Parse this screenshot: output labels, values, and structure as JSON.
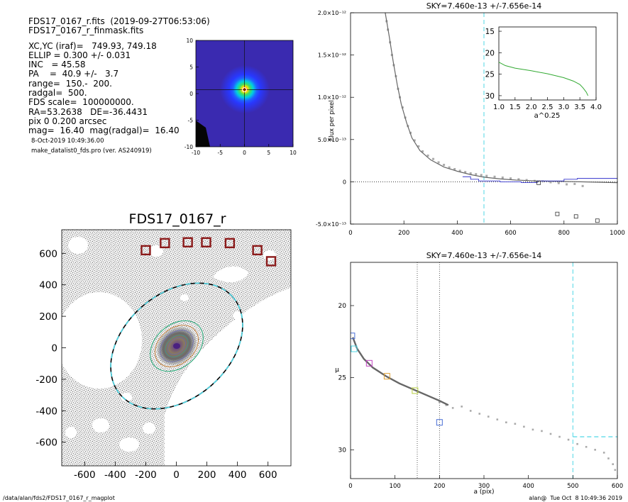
{
  "info": {
    "file_line": "FDS17_0167_r.fits  (2019-09-27T06:53:06)",
    "mask_line": "FDS17_0167_r_finmask.fits",
    "params": [
      "XC,YC (iraf)=   749.93, 749.18",
      "ELLIP = 0.300 +/- 0.031",
      "INC   = 45.58",
      "PA    =  40.9 +/-   3.7",
      "range=  150.-  200.",
      "radgal=  500.",
      "FDS scale=  100000000.",
      "RA=53.2638   DE=-36.4431",
      "pix 0 0.200 arcsec",
      "mag=  16.40  mag(radgal)=  16.40"
    ],
    "date": "8-Oct-2019 10:49:36.00",
    "program": "make_datalist0_fds.pro (ver. AS240919)"
  },
  "footer": {
    "path": "/data/alan/fds2/FDS17_0167_r_magplot",
    "stamp": "alan@  Tue Oct  8 10:49:36 2019"
  },
  "colors": {
    "sky_line": "#4fd7e6",
    "points": "#aaaaaa",
    "profile": "#666666",
    "box_red": "#8b1a1a",
    "blue_curve": "#3333cc",
    "green_curve": "#33aa33"
  },
  "chart_data": [
    {
      "type": "heatmap",
      "title": "",
      "xlim": [
        -10,
        10
      ],
      "ylim": [
        -10,
        10
      ],
      "xticks": [
        "-10",
        "-5",
        "0",
        "5",
        "10"
      ],
      "yticks": [
        "-10",
        "-5",
        "0",
        "5",
        "10"
      ],
      "colormap": "rainbow (dark blue background, red peak at center)"
    },
    {
      "type": "line",
      "title": "SKY=7.460e-13 +/-7.656e-14",
      "xlabel": "",
      "ylabel": "Flux per pixel",
      "xlim": [
        0,
        1000
      ],
      "ylim": [
        -5e-13,
        2e-12
      ],
      "xticks": [
        "0",
        "200",
        "400",
        "600",
        "800",
        "1000"
      ],
      "yticks": [
        {
          "value": -5e-13,
          "label": "-5.0×10⁻¹³"
        },
        {
          "value": 0,
          "label": "0"
        },
        {
          "value": 5e-13,
          "label": "5.0×10⁻¹³"
        },
        {
          "value": 1e-12,
          "label": "1.0×10⁻¹²"
        },
        {
          "value": 1.5e-12,
          "label": "1.5×10⁻¹²"
        },
        {
          "value": 2e-12,
          "label": "2.0×10⁻¹²"
        }
      ],
      "vline_x": 500,
      "profile": [
        [
          130,
          2e-12
        ],
        [
          145,
          1.72e-12
        ],
        [
          160,
          1.42e-12
        ],
        [
          175,
          1.15e-12
        ],
        [
          190,
          9.2e-13
        ],
        [
          210,
          7e-13
        ],
        [
          230,
          5.2e-13
        ],
        [
          260,
          3.7e-13
        ],
        [
          300,
          2.6e-13
        ],
        [
          350,
          1.75e-13
        ],
        [
          400,
          1.25e-13
        ],
        [
          450,
          8.5e-14
        ],
        [
          500,
          5.5e-14
        ],
        [
          560,
          3.5e-14
        ],
        [
          620,
          2e-14
        ],
        [
          700,
          1e-14
        ],
        [
          780,
          5e-15
        ],
        [
          860,
          0
        ],
        [
          1000,
          -1e-14
        ]
      ],
      "scatter": [
        [
          135,
          1.9e-12
        ],
        [
          140,
          1.8e-12
        ],
        [
          148,
          1.65e-12
        ],
        [
          155,
          1.5e-12
        ],
        [
          162,
          1.38e-12
        ],
        [
          170,
          1.25e-12
        ],
        [
          178,
          1.1e-12
        ],
        [
          185,
          1e-12
        ],
        [
          195,
          8.8e-13
        ],
        [
          205,
          7.6e-13
        ],
        [
          215,
          6.6e-13
        ],
        [
          225,
          5.8e-13
        ],
        [
          240,
          4.9e-13
        ],
        [
          255,
          4.2e-13
        ],
        [
          270,
          3.6e-13
        ],
        [
          290,
          3.1e-13
        ],
        [
          310,
          2.7e-13
        ],
        [
          330,
          2.3e-13
        ],
        [
          350,
          2e-13
        ],
        [
          370,
          1.7e-13
        ],
        [
          390,
          1.5e-13
        ],
        [
          410,
          1.3e-13
        ],
        [
          430,
          1.15e-13
        ],
        [
          450,
          1e-13
        ],
        [
          470,
          9e-14
        ],
        [
          490,
          8e-14
        ],
        [
          510,
          7e-14
        ],
        [
          540,
          6e-14
        ],
        [
          570,
          5e-14
        ],
        [
          600,
          4e-14
        ],
        [
          630,
          3e-14
        ],
        [
          660,
          2e-14
        ],
        [
          690,
          1e-14
        ],
        [
          720,
          5e-15
        ],
        [
          750,
          -5e-15
        ],
        [
          780,
          -1.5e-14
        ],
        [
          810,
          -3e-14
        ],
        [
          840,
          -2.5e-14
        ],
        [
          870,
          -5e-14
        ]
      ],
      "squares": [
        [
          705,
          -1.2e-14
        ],
        [
          775,
          -3.8e-13
        ],
        [
          845,
          -4.1e-13
        ],
        [
          925,
          -4.6e-13
        ]
      ],
      "blue_step": [
        [
          420,
          6e-14
        ],
        [
          450,
          6e-14
        ],
        [
          450,
          3e-14
        ],
        [
          480,
          3e-14
        ],
        [
          480,
          1e-14
        ],
        [
          560,
          1e-14
        ],
        [
          560,
          0
        ],
        [
          640,
          0
        ],
        [
          640,
          -1e-14
        ],
        [
          700,
          -1e-14
        ],
        [
          700,
          1e-14
        ],
        [
          800,
          1e-14
        ],
        [
          800,
          3e-14
        ],
        [
          850,
          3e-14
        ],
        [
          850,
          4e-14
        ],
        [
          1000,
          4e-14
        ]
      ],
      "inset": {
        "xlabel": "a^0.25",
        "xlim": [
          1.0,
          4.0
        ],
        "ylim": [
          31,
          14
        ],
        "xticks": [
          "1.0",
          "1.5",
          "2.0",
          "2.5",
          "3.0",
          "3.5",
          "4.0"
        ],
        "yticks": [
          "15",
          "20",
          "25",
          "30"
        ],
        "curve": [
          [
            1.0,
            22.2
          ],
          [
            1.2,
            23.0
          ],
          [
            1.5,
            23.6
          ],
          [
            2.0,
            24.2
          ],
          [
            2.5,
            24.9
          ],
          [
            3.0,
            25.8
          ],
          [
            3.3,
            26.6
          ],
          [
            3.5,
            27.4
          ],
          [
            3.6,
            28.2
          ],
          [
            3.7,
            29.2
          ],
          [
            3.75,
            30.0
          ]
        ]
      }
    },
    {
      "type": "heatmap",
      "title": "FDS17_0167_r",
      "xlim": [
        -750,
        750
      ],
      "ylim": [
        -750,
        750
      ],
      "xticks": [
        "-600",
        "-400",
        "-200",
        "0",
        "200",
        "400",
        "600"
      ],
      "yticks": [
        "-600",
        "-400",
        "-200",
        "0",
        "200",
        "400",
        "600"
      ],
      "boxes": [
        [
          -200,
          620
        ],
        [
          -75,
          665
        ],
        [
          75,
          670
        ],
        [
          195,
          670
        ],
        [
          350,
          665
        ],
        [
          530,
          620
        ],
        [
          620,
          550
        ]
      ],
      "isophote_outer": {
        "a": 500,
        "ellip": 0.3,
        "pa": 40.9
      },
      "isophote_inner": {
        "a": 200,
        "ellip": 0.3,
        "pa": 40.9
      }
    },
    {
      "type": "scatter",
      "title": "SKY=7.460e-13 +/-7.656e-14",
      "xlabel": "a (pix)",
      "ylabel": "μ",
      "xlim": [
        0,
        600
      ],
      "ylim": [
        32,
        17
      ],
      "xticks": [
        "0",
        "100",
        "200",
        "300",
        "400",
        "500",
        "600"
      ],
      "yticks": [
        "20",
        "25",
        "30"
      ],
      "vlines": [
        150,
        200,
        500
      ],
      "profile": [
        [
          5,
          22.2
        ],
        [
          15,
          23.0
        ],
        [
          30,
          23.7
        ],
        [
          50,
          24.3
        ],
        [
          80,
          24.9
        ],
        [
          110,
          25.4
        ],
        [
          140,
          25.8
        ],
        [
          170,
          26.2
        ],
        [
          200,
          26.6
        ],
        [
          220,
          26.9
        ]
      ],
      "scatter": [
        [
          200,
          26.7
        ],
        [
          215,
          26.9
        ],
        [
          230,
          27.1
        ],
        [
          250,
          27.0
        ],
        [
          270,
          27.3
        ],
        [
          290,
          27.5
        ],
        [
          310,
          27.7
        ],
        [
          330,
          27.9
        ],
        [
          350,
          28.1
        ],
        [
          370,
          28.2
        ],
        [
          390,
          28.4
        ],
        [
          410,
          28.6
        ],
        [
          430,
          28.7
        ],
        [
          450,
          28.9
        ],
        [
          470,
          29.1
        ],
        [
          490,
          29.3
        ],
        [
          510,
          29.6
        ],
        [
          530,
          29.8
        ],
        [
          550,
          30.0
        ],
        [
          570,
          30.2
        ],
        [
          580,
          30.6
        ],
        [
          590,
          31.0
        ],
        [
          595,
          31.4
        ]
      ],
      "sky_segment": [
        [
          500,
          29.1
        ],
        [
          600,
          29.1
        ]
      ],
      "markers": [
        {
          "x": 3,
          "y": 22.1,
          "color": "#4a6fd6"
        },
        {
          "x": 8,
          "y": 23.0,
          "color": "#4fd7e6"
        },
        {
          "x": 42,
          "y": 24.0,
          "color": "#c040c0"
        },
        {
          "x": 82,
          "y": 24.9,
          "color": "#e0a030"
        },
        {
          "x": 145,
          "y": 25.9,
          "color": "#b8d040"
        },
        {
          "x": 200,
          "y": 28.1,
          "color": "#4a6fd6"
        }
      ]
    }
  ]
}
